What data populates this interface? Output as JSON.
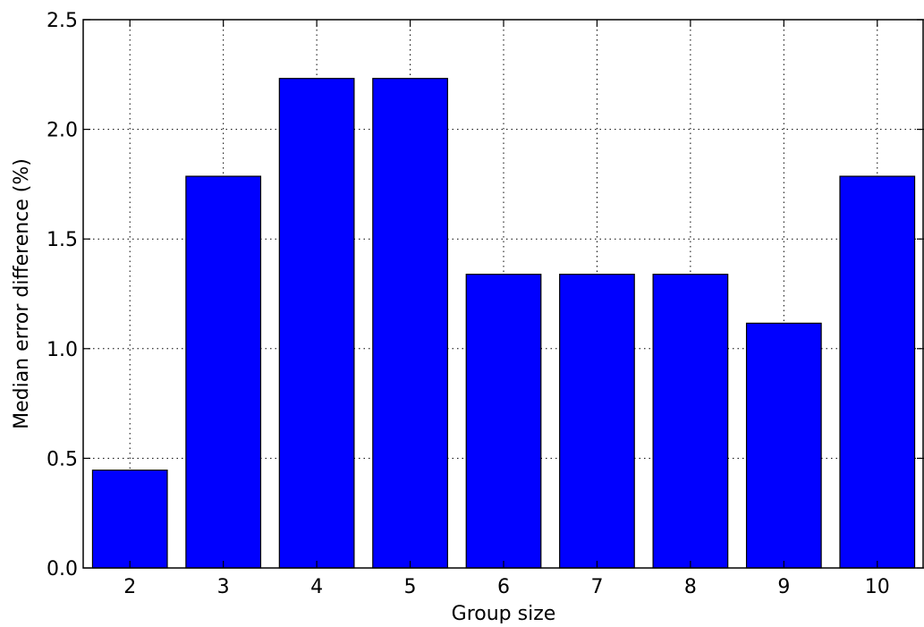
{
  "chart_data": {
    "type": "bar",
    "title": "",
    "xlabel": "Group size",
    "ylabel": "Median error difference (%)",
    "categories": [
      "2",
      "3",
      "4",
      "5",
      "6",
      "7",
      "8",
      "9",
      "10"
    ],
    "values": [
      0.446,
      1.786,
      2.232,
      2.232,
      1.339,
      1.339,
      1.339,
      1.116,
      1.786
    ],
    "ylim": [
      0,
      2.5
    ],
    "yticks": [
      "0.0",
      "0.5",
      "1.0",
      "1.5",
      "2.0",
      "2.5"
    ],
    "grid": true,
    "bar_color": "#0000ff",
    "bar_edge_color": "#000000"
  }
}
